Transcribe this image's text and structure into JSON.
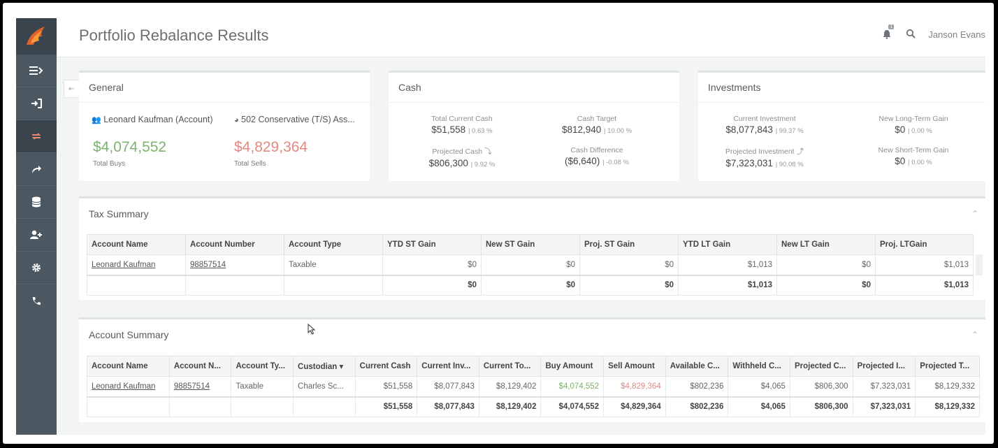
{
  "header": {
    "title": "Portfolio Rebalance Results",
    "notification_count": "1",
    "user_name": "Janson Evans"
  },
  "sidebar": {
    "items": [
      {
        "icon": "menu-expand-icon"
      },
      {
        "icon": "sign-in-icon"
      },
      {
        "icon": "rebalance-icon",
        "active": true
      },
      {
        "icon": "share-icon"
      },
      {
        "icon": "database-icon"
      },
      {
        "icon": "add-user-icon"
      },
      {
        "icon": "gear-icon"
      },
      {
        "icon": "phone-icon"
      }
    ]
  },
  "general": {
    "title": "General",
    "account": "Leonard Kaufman (Account)",
    "model": "502 Conservative (T/S) Ass...",
    "total_buys_value": "$4,074,552",
    "total_buys_label": "Total Buys",
    "total_sells_value": "$4,829,364",
    "total_sells_label": "Total Sells"
  },
  "cash": {
    "title": "Cash",
    "total_current_cash": {
      "label": "Total Current Cash",
      "value": "$51,558",
      "pct": "| 0.63 %"
    },
    "cash_target": {
      "label": "Cash Target",
      "value": "$812,940",
      "pct": "| 10.00 %"
    },
    "projected_cash": {
      "label": "Projected Cash ⤵",
      "value": "$806,300",
      "pct": "| 9.92 %"
    },
    "cash_difference": {
      "label": "Cash Difference",
      "value": "($6,640)",
      "pct": "| -0.08 %"
    }
  },
  "investments": {
    "title": "Investments",
    "current_investment": {
      "label": "Current Investment",
      "value": "$8,077,843",
      "pct": "| 99.37 %"
    },
    "new_long_term_gain": {
      "label": "New Long-Term Gain",
      "value": "$0",
      "pct": "| 0.00 %"
    },
    "projected_investment": {
      "label": "Projected Investment ⤴",
      "value": "$7,323,031",
      "pct": "| 90.08 %"
    },
    "new_short_term_gain": {
      "label": "New Short-Term Gain",
      "value": "$0",
      "pct": "| 0.00 %"
    }
  },
  "tax_summary": {
    "title": "Tax Summary",
    "columns": [
      "Account Name",
      "Account Number",
      "Account Type",
      "YTD ST Gain",
      "New ST Gain",
      "Proj. ST Gain",
      "YTD LT Gain",
      "New LT Gain",
      "Proj. LTGain"
    ],
    "row": [
      "Leonard Kaufman",
      "98857514",
      "Taxable",
      "$0",
      "$0",
      "$0",
      "$1,013",
      "$0",
      "$1,013"
    ],
    "total": [
      "",
      "",
      "",
      "$0",
      "$0",
      "$0",
      "$1,013",
      "$0",
      "$1,013"
    ]
  },
  "account_summary": {
    "title": "Account Summary",
    "columns": [
      "Account Name",
      "Account N...",
      "Account Ty...",
      "Custodian ▾",
      "Current Cash",
      "Current Inv...",
      "Current To...",
      "Buy Amount",
      "Sell Amount",
      "Available C...",
      "Withheld C...",
      "Projected C...",
      "Projected I...",
      "Projected T..."
    ],
    "row": [
      "Leonard Kaufman",
      "98857514",
      "Taxable",
      "Charles Sc...",
      "$51,558",
      "$8,077,843",
      "$8,129,402",
      "$4,074,552",
      "$4,829,364",
      "$802,236",
      "$4,065",
      "$806,300",
      "$7,323,031",
      "$8,129,332"
    ],
    "total": [
      "",
      "",
      "",
      "",
      "$51,558",
      "$8,077,843",
      "$8,129,402",
      "$4,074,552",
      "$4,829,364",
      "$802,236",
      "$4,065",
      "$806,300",
      "$7,323,031",
      "$8,129,332"
    ]
  },
  "colors": {
    "sidebar": "#4b5862",
    "buy_green": "#7db36f",
    "sell_red": "#e08a80",
    "active_icon": "#e88a6f"
  }
}
